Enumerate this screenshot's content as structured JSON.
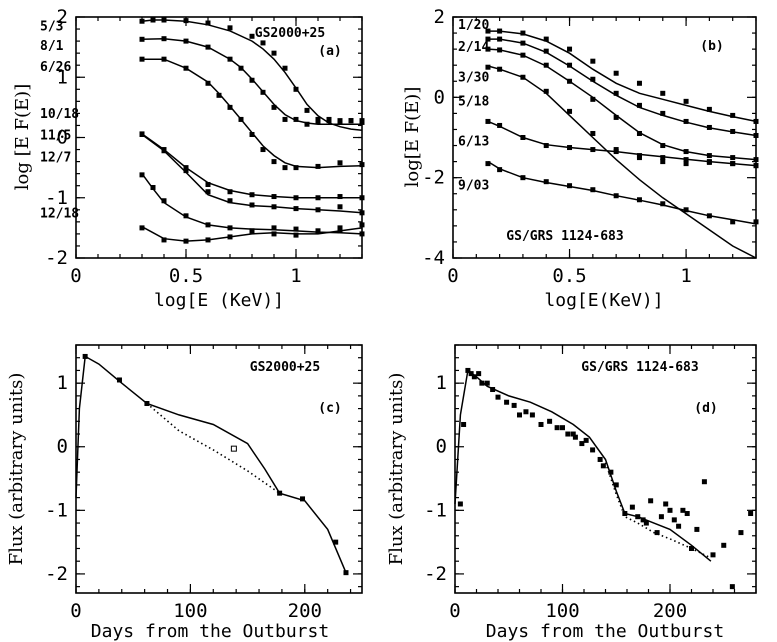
{
  "chart_data": [
    {
      "panel": "(a)",
      "type": "line",
      "title": "GS2000+25",
      "xlabel": "log[E (KeV)]",
      "ylabel": "log [E F(E)]",
      "xlim": [
        0,
        1.3
      ],
      "ylim": [
        -2,
        2
      ],
      "xticks": [
        0,
        0.5,
        1
      ],
      "xtick_labels": [
        "0",
        "0.5",
        "1"
      ],
      "yticks": [
        -2,
        -1,
        0,
        1,
        2
      ],
      "ytick_labels": [
        "-2",
        "-1",
        "0",
        "1",
        "2"
      ],
      "series": [
        {
          "name": "5/3",
          "label_y": 1.78,
          "x": [
            0.3,
            0.35,
            0.4,
            0.5,
            0.6,
            0.7,
            0.8,
            0.85,
            0.9,
            0.95,
            1.0,
            1.05,
            1.1,
            1.15,
            1.2,
            1.25,
            1.3
          ],
          "y": [
            1.93,
            1.95,
            1.95,
            1.94,
            1.9,
            1.82,
            1.68,
            1.57,
            1.4,
            1.15,
            0.8,
            0.45,
            0.3,
            0.28,
            0.28,
            0.28,
            0.28
          ],
          "model": [
            1.93,
            1.95,
            1.95,
            1.93,
            1.87,
            1.77,
            1.6,
            1.47,
            1.3,
            1.08,
            0.82,
            0.55,
            0.36,
            0.24,
            0.18,
            0.14,
            0.12
          ]
        },
        {
          "name": "8/1",
          "label_y": 1.45,
          "x": [
            0.3,
            0.4,
            0.5,
            0.6,
            0.7,
            0.75,
            0.8,
            0.85,
            0.9,
            0.95,
            1.0,
            1.05,
            1.1,
            1.15,
            1.2,
            1.25,
            1.3
          ],
          "y": [
            1.63,
            1.64,
            1.6,
            1.5,
            1.3,
            1.15,
            0.95,
            0.75,
            0.5,
            0.3,
            0.3,
            0.22,
            0.27,
            0.3,
            0.25,
            0.28,
            0.25
          ],
          "model": [
            1.63,
            1.64,
            1.6,
            1.5,
            1.3,
            1.16,
            0.97,
            0.76,
            0.55,
            0.38,
            0.28,
            0.24,
            0.22,
            0.22,
            0.22,
            0.22,
            0.22
          ]
        },
        {
          "name": "6/26",
          "label_y": 1.1,
          "x": [
            0.3,
            0.4,
            0.5,
            0.6,
            0.65,
            0.7,
            0.75,
            0.8,
            0.85,
            0.9,
            0.95,
            1.0,
            1.1,
            1.2,
            1.3
          ],
          "y": [
            1.3,
            1.3,
            1.15,
            0.9,
            0.7,
            0.5,
            0.3,
            0.05,
            -0.2,
            -0.4,
            -0.5,
            -0.5,
            -0.48,
            -0.42,
            -0.45
          ],
          "model": [
            1.3,
            1.3,
            1.15,
            0.92,
            0.73,
            0.52,
            0.3,
            0.08,
            -0.14,
            -0.3,
            -0.42,
            -0.48,
            -0.5,
            -0.48,
            -0.47
          ]
        },
        {
          "name": "10/18",
          "label_y": 0.32,
          "x": [
            0.3,
            0.4,
            0.5,
            0.6,
            0.7,
            0.8,
            0.9,
            1.0,
            1.1,
            1.2,
            1.3
          ],
          "y": [
            0.06,
            -0.2,
            -0.5,
            -0.78,
            -0.9,
            -0.95,
            -0.98,
            -1.0,
            -1.0,
            -0.98,
            -1.0
          ],
          "model": [
            0.06,
            -0.2,
            -0.5,
            -0.75,
            -0.88,
            -0.95,
            -0.98,
            -1.0,
            -1.0,
            -1.0,
            -1.0
          ]
        },
        {
          "name": "11/5",
          "label_y": -0.03,
          "x": [
            0.3,
            0.4,
            0.5,
            0.6,
            0.7,
            0.8,
            0.9,
            1.0,
            1.1,
            1.2,
            1.3
          ],
          "y": [
            0.05,
            -0.22,
            -0.55,
            -0.9,
            -1.05,
            -1.12,
            -1.15,
            -1.18,
            -1.2,
            -1.15,
            -1.25
          ],
          "model": [
            0.05,
            -0.22,
            -0.58,
            -0.95,
            -1.08,
            -1.13,
            -1.15,
            -1.18,
            -1.2,
            -1.22,
            -1.25
          ]
        },
        {
          "name": "12/7",
          "label_y": -0.4,
          "x": [
            0.3,
            0.35,
            0.4,
            0.5,
            0.6,
            0.7,
            0.8,
            0.9,
            1.0,
            1.1,
            1.2,
            1.3
          ],
          "y": [
            -0.62,
            -0.83,
            -1.05,
            -1.3,
            -1.45,
            -1.5,
            -1.55,
            -1.5,
            -1.52,
            -1.55,
            -1.55,
            -1.6
          ],
          "model": [
            -0.6,
            -0.85,
            -1.08,
            -1.32,
            -1.45,
            -1.5,
            -1.52,
            -1.53,
            -1.55,
            -1.57,
            -1.58,
            -1.6
          ]
        },
        {
          "name": "12/18",
          "label_y": -1.33,
          "x": [
            0.3,
            0.4,
            0.5,
            0.6,
            0.7,
            0.8,
            0.9,
            1.0,
            1.1,
            1.2,
            1.3
          ],
          "y": [
            -1.5,
            -1.7,
            -1.72,
            -1.7,
            -1.65,
            -1.55,
            -1.6,
            -1.62,
            -1.55,
            -1.5,
            -1.45
          ],
          "model": [
            -1.48,
            -1.68,
            -1.72,
            -1.7,
            -1.65,
            -1.6,
            -1.58,
            -1.6,
            -1.6,
            -1.55,
            -1.5
          ]
        }
      ]
    },
    {
      "panel": "(b)",
      "type": "line",
      "title": "GS/GRS 1124-683",
      "xlabel": "log[E(KeV)]",
      "ylabel": "log[E F(E)]",
      "xlim": [
        0,
        1.3
      ],
      "ylim": [
        -4,
        2
      ],
      "xticks": [
        0,
        0.5,
        1
      ],
      "xtick_labels": [
        "0",
        "0.5",
        "1"
      ],
      "yticks": [
        -4,
        -2,
        0,
        2
      ],
      "ytick_labels": [
        "-4",
        "-2",
        "0",
        "2"
      ],
      "series": [
        {
          "name": "1/20",
          "label_y": 1.7,
          "x": [
            0.15,
            0.2,
            0.3,
            0.4,
            0.5,
            0.6,
            0.7,
            0.8,
            0.9,
            1.0,
            1.1,
            1.2,
            1.3
          ],
          "y": [
            1.65,
            1.65,
            1.6,
            1.45,
            1.2,
            0.9,
            0.6,
            0.35,
            0.1,
            -0.1,
            -0.3,
            -0.45,
            -0.6
          ],
          "model": [
            1.65,
            1.65,
            1.58,
            1.4,
            1.1,
            0.7,
            0.35,
            0.1,
            -0.05,
            -0.2,
            -0.35,
            -0.48,
            -0.6
          ]
        },
        {
          "name": "2/14",
          "label_y": 1.15,
          "x": [
            0.15,
            0.2,
            0.3,
            0.4,
            0.5,
            0.6,
            0.7,
            0.8,
            0.9,
            1.0,
            1.1,
            1.2,
            1.3
          ],
          "y": [
            1.45,
            1.45,
            1.35,
            1.15,
            0.8,
            0.45,
            0.1,
            -0.2,
            -0.4,
            -0.6,
            -0.75,
            -0.85,
            -0.95
          ],
          "model": [
            1.45,
            1.45,
            1.35,
            1.12,
            0.78,
            0.4,
            0.05,
            -0.25,
            -0.45,
            -0.62,
            -0.76,
            -0.86,
            -0.95
          ]
        },
        {
          "name": "3/30",
          "label_y": 0.4,
          "x": [
            0.15,
            0.2,
            0.3,
            0.4,
            0.5,
            0.6,
            0.7,
            0.8,
            0.9,
            1.0,
            1.1,
            1.2,
            1.3
          ],
          "y": [
            1.2,
            1.18,
            1.05,
            0.8,
            0.4,
            -0.05,
            -0.5,
            -0.9,
            -1.2,
            -1.35,
            -1.45,
            -1.5,
            -1.55
          ],
          "model": [
            1.2,
            1.18,
            1.05,
            0.78,
            0.4,
            0.0,
            -0.45,
            -0.88,
            -1.18,
            -1.35,
            -1.45,
            -1.5,
            -1.55
          ]
        },
        {
          "name": "5/18",
          "label_y": -0.2,
          "x": [
            0.15,
            0.2,
            0.3,
            0.4,
            0.5,
            0.6,
            0.7,
            0.8,
            0.9,
            1.0,
            1.1,
            1.2,
            1.3
          ],
          "y": [
            0.75,
            0.7,
            0.5,
            0.15,
            -0.35,
            -0.9,
            -1.3,
            -1.5,
            -1.6,
            -1.65,
            -1.62,
            -1.65,
            -1.7
          ],
          "model": [
            0.78,
            0.7,
            0.5,
            0.1,
            -0.45,
            -1.0,
            -1.55,
            -2.05,
            -2.5,
            -2.9,
            -3.3,
            -3.7,
            -4.0
          ]
        },
        {
          "name": "6/13",
          "label_y": -1.2,
          "x": [
            0.15,
            0.2,
            0.3,
            0.4,
            0.5,
            0.6,
            0.7,
            0.8,
            0.9,
            1.0,
            1.1,
            1.2,
            1.3
          ],
          "y": [
            -0.6,
            -0.7,
            -1.0,
            -1.2,
            -1.25,
            -1.3,
            -1.35,
            -1.45,
            -1.5,
            -1.55,
            -1.6,
            -1.65,
            -1.7
          ],
          "model": [
            -0.6,
            -0.72,
            -1.0,
            -1.18,
            -1.25,
            -1.3,
            -1.35,
            -1.42,
            -1.48,
            -1.54,
            -1.6,
            -1.65,
            -1.7
          ]
        },
        {
          "name": "9/03",
          "label_y": -2.3,
          "x": [
            0.15,
            0.2,
            0.3,
            0.4,
            0.5,
            0.6,
            0.7,
            0.8,
            0.9,
            1.0,
            1.1,
            1.2,
            1.3
          ],
          "y": [
            -1.65,
            -1.8,
            -2.0,
            -2.1,
            -2.2,
            -2.3,
            -2.45,
            -2.55,
            -2.65,
            -2.8,
            -2.95,
            -3.1,
            -3.1
          ],
          "model": [
            -1.6,
            -1.78,
            -2.0,
            -2.12,
            -2.22,
            -2.32,
            -2.45,
            -2.56,
            -2.68,
            -2.82,
            -2.95,
            -3.05,
            -3.15
          ]
        }
      ]
    },
    {
      "panel": "(c)",
      "type": "line",
      "title": "GS2000+25",
      "xlabel": "Days from the Outburst",
      "ylabel": "Flux (arbitrary units)",
      "xlim": [
        0,
        250
      ],
      "ylim": [
        -2.3,
        1.6
      ],
      "xticks": [
        0,
        100,
        200
      ],
      "xtick_labels": [
        "0",
        "100",
        "200"
      ],
      "yticks": [
        -2,
        -1,
        0,
        1
      ],
      "ytick_labels": [
        "-2",
        "-1",
        "0",
        "1"
      ],
      "points": {
        "x": [
          8,
          38,
          62,
          138,
          178,
          198,
          227,
          236
        ],
        "y": [
          1.42,
          1.05,
          0.68,
          -0.03,
          -0.73,
          -0.82,
          -1.5,
          -1.98
        ]
      },
      "model_solid": {
        "x": [
          0,
          3,
          8,
          20,
          40,
          62,
          90,
          120,
          150,
          165,
          178,
          200,
          220,
          236
        ],
        "y": [
          -0.8,
          0.6,
          1.42,
          1.3,
          1.0,
          0.68,
          0.5,
          0.35,
          0.05,
          -0.35,
          -0.73,
          -0.85,
          -1.3,
          -1.98
        ]
      },
      "model_dotted": {
        "x": [
          62,
          90,
          120,
          150,
          178
        ],
        "y": [
          0.68,
          0.25,
          -0.05,
          -0.38,
          -0.73
        ]
      }
    },
    {
      "panel": "(d)",
      "type": "line",
      "title": "GS/GRS 1124-683",
      "xlabel": "Days from the Outburst",
      "ylabel": "Flux (arbitrary units)",
      "xlim": [
        0,
        280
      ],
      "ylim": [
        -2.3,
        1.6
      ],
      "xticks": [
        0,
        100,
        200
      ],
      "xtick_labels": [
        "0",
        "100",
        "200"
      ],
      "yticks": [
        -2,
        -1,
        0,
        1
      ],
      "ytick_labels": [
        "-2",
        "-1",
        "0",
        "1"
      ],
      "points": {
        "x": [
          5,
          8,
          12,
          15,
          18,
          22,
          25,
          30,
          35,
          40,
          48,
          55,
          60,
          66,
          72,
          80,
          88,
          95,
          100,
          105,
          110,
          112,
          118,
          122,
          128,
          135,
          138,
          145,
          150,
          158,
          165,
          170,
          175,
          178,
          182,
          188,
          192,
          196,
          200,
          204,
          208,
          212,
          216,
          220,
          225,
          232,
          240,
          250,
          258,
          266,
          275
        ],
        "y": [
          -0.9,
          0.35,
          1.2,
          1.15,
          1.1,
          1.15,
          1.0,
          1.0,
          0.9,
          0.78,
          0.7,
          0.65,
          0.5,
          0.55,
          0.5,
          0.35,
          0.4,
          0.3,
          0.3,
          0.2,
          0.2,
          0.15,
          0.05,
          0.1,
          -0.05,
          -0.2,
          -0.3,
          -0.4,
          -0.6,
          -1.05,
          -0.95,
          -1.1,
          -1.15,
          -1.2,
          -0.85,
          -1.35,
          -1.1,
          -0.9,
          -1.0,
          -1.15,
          -1.25,
          -1.0,
          -1.05,
          -1.6,
          -1.3,
          -0.55,
          -1.7,
          -1.55,
          -2.2,
          -1.35,
          -1.05
        ]
      },
      "model_solid": {
        "x": [
          0,
          5,
          12,
          20,
          30,
          50,
          70,
          90,
          110,
          125,
          140,
          150,
          158,
          170,
          185,
          200,
          220,
          238
        ],
        "y": [
          -0.9,
          0.5,
          1.2,
          1.1,
          0.95,
          0.8,
          0.7,
          0.55,
          0.35,
          0.15,
          -0.2,
          -0.7,
          -1.05,
          -1.1,
          -1.2,
          -1.3,
          -1.55,
          -1.8
        ]
      },
      "model_dotted": {
        "x": [
          140,
          150,
          158,
          170,
          185,
          200,
          220,
          238
        ],
        "y": [
          -0.25,
          -0.75,
          -1.1,
          -1.2,
          -1.35,
          -1.45,
          -1.6,
          -1.75
        ]
      }
    }
  ]
}
